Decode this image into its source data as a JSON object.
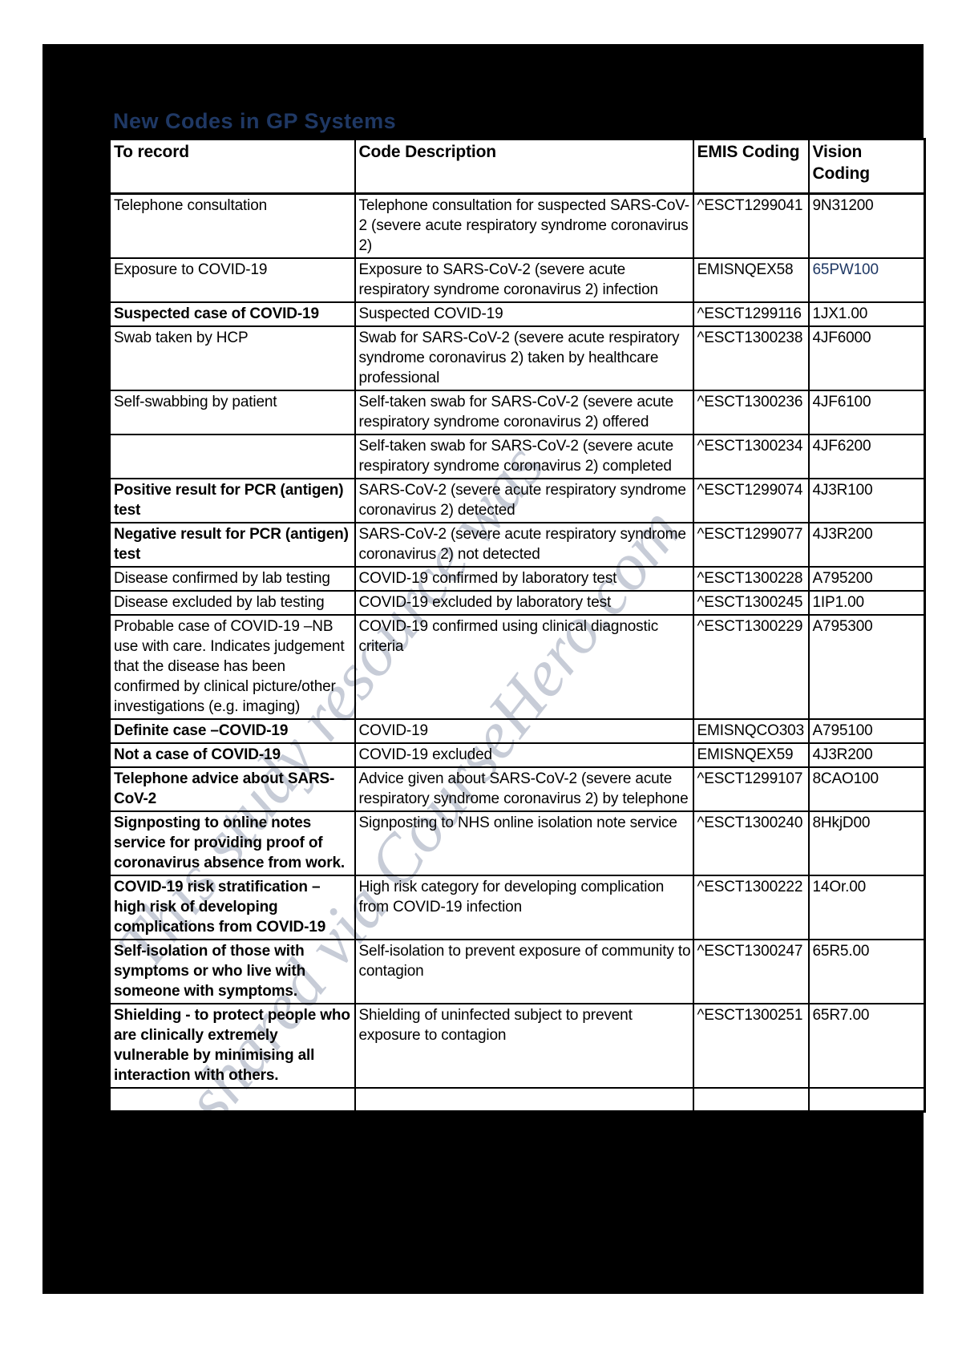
{
  "page": {
    "title": "New Codes in GP Systems",
    "watermark": {
      "line1": "This study resource was",
      "line2": "shared via CourseHero.com"
    },
    "colors": {
      "title_text": "#1f3864",
      "highlighted_code": "#1f3864",
      "page_background": "#000000",
      "cell_background": "#ffffff",
      "watermark": "#bdc3d0"
    }
  },
  "table": {
    "headers": [
      "To record",
      "Code Description",
      "EMIS Coding",
      "Vision Coding"
    ],
    "rows": [
      {
        "to_record": "Telephone consultation",
        "description": "Telephone consultation for suspected SARS-CoV-2 (severe acute respiratory syndrome coronavirus 2)",
        "emis": "^ESCT1299041",
        "vision": "9N31200",
        "bold": false,
        "vision_navy": false
      },
      {
        "to_record": "Exposure to COVID-19",
        "description": "Exposure to SARS-CoV-2 (severe acute respiratory syndrome coronavirus 2) infection",
        "emis": "EMISNQEX58",
        "vision": "65PW100",
        "bold": false,
        "vision_navy": true
      },
      {
        "to_record": "Suspected case of COVID-19",
        "description": "Suspected COVID-19",
        "emis": "^ESCT1299116",
        "vision": "1JX1.00",
        "bold": true,
        "vision_navy": false
      },
      {
        "to_record": "Swab taken by HCP",
        "description": "Swab for SARS-CoV-2 (severe acute respiratory syndrome coronavirus 2) taken by healthcare professional",
        "emis": "^ESCT1300238",
        "vision": "4JF6000",
        "bold": false,
        "vision_navy": false
      },
      {
        "to_record": "Self-swabbing by patient",
        "description": "Self-taken swab for SARS-CoV-2 (severe acute respiratory syndrome coronavirus 2) offered",
        "emis": "^ESCT1300236",
        "vision": "4JF6100",
        "bold": false,
        "vision_navy": false
      },
      {
        "to_record": "",
        "description": "Self-taken swab for SARS-CoV-2 (severe acute respiratory syndrome coronavirus 2) completed",
        "emis": "^ESCT1300234",
        "vision": "4JF6200",
        "bold": false,
        "vision_navy": false
      },
      {
        "to_record": "Positive result for PCR (antigen) test",
        "description": "SARS-CoV-2 (severe acute respiratory syndrome coronavirus 2) detected",
        "emis": "^ESCT1299074",
        "vision": "4J3R100",
        "bold": true,
        "vision_navy": false
      },
      {
        "to_record": "Negative result for PCR (antigen) test",
        "description": "SARS-CoV-2 (severe acute respiratory syndrome coronavirus 2) not detected",
        "emis": "^ESCT1299077",
        "vision": "4J3R200",
        "bold": true,
        "vision_navy": false
      },
      {
        "to_record": "Disease confirmed by lab testing",
        "description": "COVID-19 confirmed by laboratory test",
        "emis": "^ESCT1300228",
        "vision": "A795200",
        "bold": false,
        "vision_navy": false
      },
      {
        "to_record": "Disease excluded by lab testing",
        "description": "COVID-19 excluded by laboratory test",
        "emis": "^ESCT1300245",
        "vision": "1IP1.00",
        "bold": false,
        "vision_navy": false
      },
      {
        "to_record": "Probable case of COVID-19 –NB use with care. Indicates judgement that the disease has been confirmed by clinical picture/other investigations (e.g. imaging)",
        "description": "COVID-19 confirmed using clinical diagnostic criteria",
        "emis": "^ESCT1300229",
        "vision": "A795300",
        "bold": false,
        "vision_navy": false
      },
      {
        "to_record": "Definite case –COVID-19",
        "description": "COVID-19",
        "emis": "EMISNQCO303",
        "vision": "A795100",
        "bold": true,
        "vision_navy": false
      },
      {
        "to_record": "Not a case of COVID-19",
        "description": "COVID-19 excluded",
        "emis": "EMISNQEX59",
        "vision": "4J3R200",
        "bold": true,
        "vision_navy": false
      },
      {
        "to_record": "Telephone advice about SARS-CoV-2",
        "description": "Advice given about SARS-CoV-2 (severe acute respiratory syndrome coronavirus 2) by telephone",
        "emis": "^ESCT1299107",
        "vision": "8CAO100",
        "bold": true,
        "vision_navy": false
      },
      {
        "to_record": "Signposting to online notes service for providing proof of coronavirus absence from work.",
        "description": "Signposting to NHS online isolation note service",
        "emis": "^ESCT1300240",
        "vision": "8HkjD00",
        "bold": true,
        "vision_navy": false
      },
      {
        "to_record": "COVID-19 risk stratification – high risk of developing complications from COVID-19",
        "description": "High risk category for developing complication from COVID-19 infection",
        "emis": "^ESCT1300222",
        "vision": "14Or.00",
        "bold": true,
        "vision_navy": false
      },
      {
        "to_record": "Self-isolation of those with symptoms or who live with someone with symptoms.",
        "description": "Self-isolation to prevent exposure of community to contagion",
        "emis": "^ESCT1300247",
        "vision": "65R5.00",
        "bold": true,
        "vision_navy": false
      },
      {
        "to_record": "Shielding - to protect people who are clinically extremely vulnerable by minimising all interaction with others.",
        "description": "Shielding of uninfected subject to prevent exposure to contagion",
        "emis": "^ESCT1300251",
        "vision": "65R7.00",
        "bold": true,
        "vision_navy": false
      },
      {
        "to_record": "",
        "description": "",
        "emis": "",
        "vision": "",
        "bold": false,
        "vision_navy": false
      }
    ]
  }
}
